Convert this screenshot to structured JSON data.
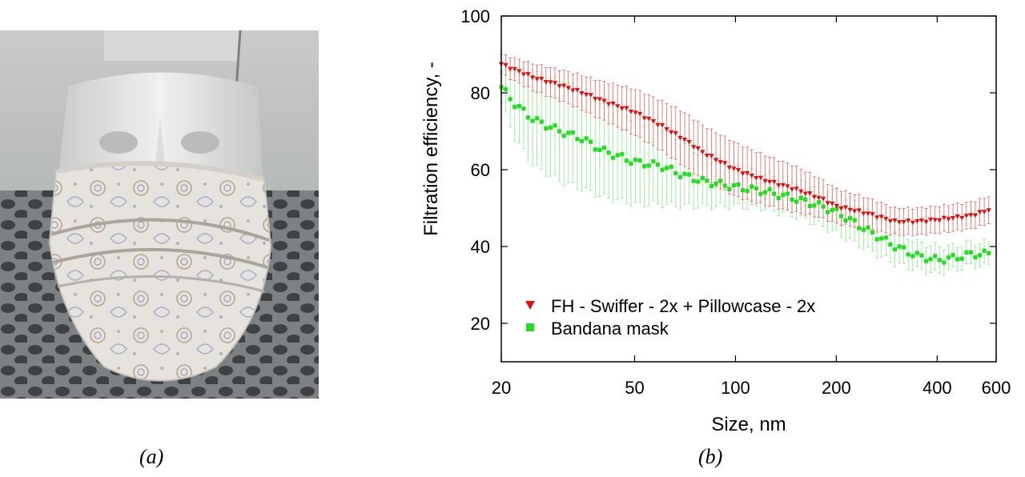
{
  "captions": {
    "a": "(a)",
    "b": "(b)"
  },
  "photo": {
    "subject": "cloth bandana mask on mannequin head"
  },
  "colors": {
    "series_fh": "#dd1111",
    "series_fh_err": "#e86060",
    "series_bandana": "#22dd22",
    "series_bandana_err": "#8be88b"
  },
  "chart_data": {
    "type": "scatter",
    "xlabel": "Size, nm",
    "ylabel": "Filtration efficiency, -",
    "xscale": "log",
    "xlim": [
      20,
      600
    ],
    "ylim": [
      10,
      100
    ],
    "xticks": [
      20,
      50,
      100,
      200,
      400,
      600
    ],
    "xtick_labels": [
      "20",
      "50",
      "100",
      "200",
      "400",
      "600"
    ],
    "yticks": [
      20,
      40,
      60,
      80,
      100
    ],
    "ytick_labels": [
      "20",
      "40",
      "60",
      "80",
      "100"
    ],
    "grid": false,
    "legend_position": "bottom-left",
    "series": [
      {
        "name": "FH - Swiffer - 2x + Pillowcase - 2x",
        "marker": "triangle-down",
        "x": [
          20,
          22,
          25,
          30,
          35,
          40,
          50,
          60,
          70,
          80,
          100,
          120,
          150,
          180,
          200,
          250,
          300,
          350,
          400,
          450,
          500,
          550,
          600
        ],
        "y": [
          87.5,
          86,
          84,
          82,
          80,
          78,
          75,
          71.5,
          68,
          64.5,
          60,
          57.5,
          55,
          52.5,
          50.5,
          48.5,
          46.5,
          46.5,
          47,
          47.5,
          48,
          49,
          50.5
        ],
        "err": [
          2.5,
          3,
          3.5,
          4,
          4.5,
          5,
          6,
          6.5,
          7,
          7,
          7,
          6.5,
          6,
          5,
          4.5,
          4,
          3.5,
          3.5,
          3.5,
          3.5,
          3.5,
          3.5,
          3.5
        ]
      },
      {
        "name": "Bandana mask",
        "marker": "square",
        "x": [
          20,
          22,
          25,
          30,
          35,
          40,
          50,
          60,
          70,
          80,
          100,
          120,
          150,
          180,
          200,
          250,
          300,
          350,
          400,
          450,
          500,
          550,
          600
        ],
        "y": [
          81.5,
          77,
          73,
          70,
          68,
          65,
          62,
          61,
          58.5,
          57,
          55.5,
          54.5,
          52.5,
          50.5,
          49,
          44,
          40,
          37.5,
          36.5,
          37,
          38,
          38,
          38.5
        ],
        "err": [
          4,
          9,
          12,
          13,
          13,
          12,
          11,
          10,
          8,
          6.5,
          5,
          4.5,
          4.5,
          5,
          5.5,
          5,
          4.5,
          3.5,
          3.5,
          3,
          3,
          3,
          3
        ]
      }
    ]
  }
}
